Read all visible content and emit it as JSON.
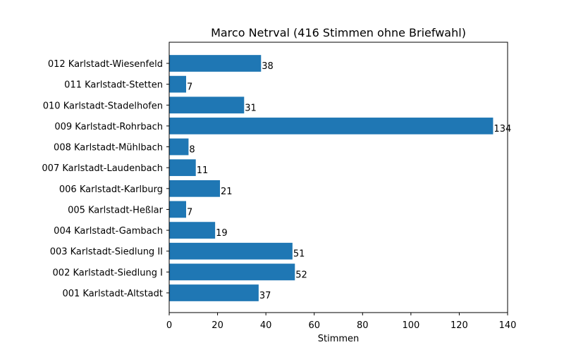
{
  "chart_data": {
    "type": "bar",
    "orientation": "horizontal",
    "title": "Marco Netrval (416 Stimmen ohne Briefwahl)",
    "xlabel": "Stimmen",
    "ylabel": "",
    "xlim": [
      0,
      140
    ],
    "xticks": [
      0,
      20,
      40,
      60,
      80,
      100,
      120,
      140
    ],
    "categories": [
      "001 Karlstadt-Altstadt",
      "002 Karlstadt-Siedlung I",
      "003 Karlstadt-Siedlung II",
      "004 Karlstadt-Gambach",
      "005 Karlstadt-Heßlar",
      "006 Karlstadt-Karlburg",
      "007 Karlstadt-Laudenbach",
      "008 Karlstadt-Mühlbach",
      "009 Karlstadt-Rohrbach",
      "010 Karlstadt-Stadelhofen",
      "011 Karlstadt-Stetten",
      "012 Karlstadt-Wiesenfeld"
    ],
    "values": [
      37,
      52,
      51,
      19,
      7,
      21,
      11,
      8,
      134,
      31,
      7,
      38
    ],
    "bar_color": "#1f77b4",
    "grid": false,
    "legend": "none"
  }
}
